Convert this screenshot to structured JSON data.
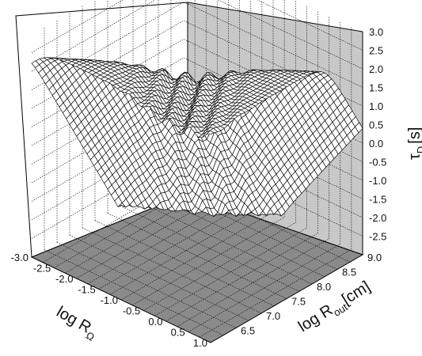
{
  "chart_data": {
    "type": "surface",
    "title": "",
    "xlabel": "log R",
    "xlabel_sub": "Ω",
    "ylabel": "log R",
    "ylabel_sub": "out",
    "ylabel_unit": "[cm]",
    "zlabel": "τ",
    "zlabel_sub": "D",
    "zlabel_unit": "[s]",
    "x_ticks": [
      "-3.0",
      "-2.5",
      "-2.0",
      "-1.5",
      "-1.0",
      "-0.5",
      "0.0",
      "0.5",
      "1.0"
    ],
    "y_ticks": [
      "6.5",
      "7.0",
      "7.5",
      "8.0",
      "8.5",
      "9.0"
    ],
    "z_ticks": [
      "3.0",
      "2.5",
      "2.0",
      "1.5",
      "1.0",
      "0.5",
      "0.0",
      "-0.5",
      "-1.0",
      "-1.5",
      "-2.0",
      "-2.5"
    ],
    "xlim": [
      -3.0,
      1.0
    ],
    "ylim": [
      6.0,
      9.0
    ],
    "zlim": [
      -3.0,
      3.0
    ],
    "grid": true,
    "surface": {
      "description_free": true,
      "plateau_z": 2.7,
      "min_z": -3.0
    },
    "colors": {
      "back_wall": "#ffffff",
      "right_wall": "#c8c8c8",
      "floor": "#8a8a8a",
      "mesh_fill": "#ffffff",
      "mesh_line": "#111111"
    }
  }
}
